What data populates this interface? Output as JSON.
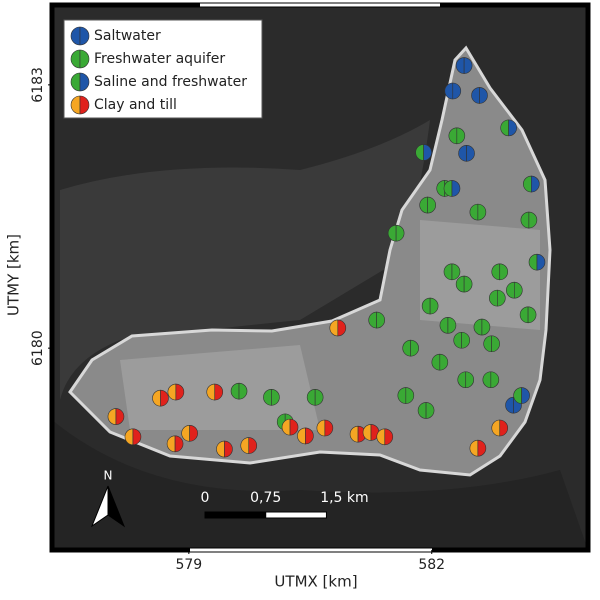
{
  "chart_data": {
    "type": "scatter",
    "xlabel": "UTMX [km]",
    "ylabel": "UTMY [km]",
    "xlim": [
      577.31,
      583.93
    ],
    "ylim": [
      6177.7,
      6183.91
    ],
    "xticks": [
      579,
      582
    ],
    "yticks": [
      6180,
      6183
    ],
    "legend": "upper left",
    "series": [
      {
        "name": "Saltwater",
        "colors": [
          "#1f56a8",
          "#1f56a8"
        ],
        "x": [
          582.4,
          582.26,
          582.59,
          582.43,
          583.01
        ],
        "y": [
          6183.22,
          6182.93,
          6182.88,
          6182.22,
          6179.35
        ]
      },
      {
        "name": "Freshwater aquifer",
        "colors": [
          "#3aa935",
          "#3aa935"
        ],
        "x": [
          582.31,
          582.16,
          581.95,
          582.57,
          581.56,
          583.2,
          582.25,
          582.84,
          582.4,
          583.02,
          582.81,
          581.98,
          583.19,
          581.32,
          582.2,
          582.62,
          582.37,
          581.74,
          582.74,
          582.1,
          582.42,
          582.73,
          579.62,
          580.02,
          580.56,
          581.68,
          580.19,
          581.93
        ],
        "y": [
          6182.42,
          6181.82,
          6181.63,
          6181.55,
          6181.31,
          6181.46,
          6180.87,
          6180.87,
          6180.73,
          6180.66,
          6180.57,
          6180.48,
          6180.38,
          6180.32,
          6180.26,
          6180.24,
          6180.09,
          6180.0,
          6180.05,
          6179.84,
          6179.64,
          6179.64,
          6179.51,
          6179.44,
          6179.44,
          6179.46,
          6179.16,
          6179.29
        ]
      },
      {
        "name": "Saline and freshwater",
        "colors": [
          "#3aa935",
          "#1f56a8"
        ],
        "x": [
          582.95,
          581.9,
          582.25,
          583.23,
          583.3,
          583.11
        ],
        "y": [
          6182.51,
          6182.23,
          6181.82,
          6181.87,
          6180.98,
          6179.46
        ]
      },
      {
        "name": "Clay and till",
        "colors": [
          "#f5a623",
          "#e0221c"
        ],
        "x": [
          580.84,
          578.65,
          578.84,
          579.32,
          578.1,
          578.31,
          578.83,
          579.01,
          579.44,
          579.74,
          580.25,
          580.44,
          580.68,
          581.09,
          581.25,
          581.42,
          582.57,
          582.84
        ],
        "y": [
          6180.23,
          6179.43,
          6179.5,
          6179.5,
          6179.22,
          6178.99,
          6178.91,
          6179.03,
          6178.85,
          6178.89,
          6179.1,
          6179.0,
          6179.09,
          6179.02,
          6179.04,
          6178.99,
          6178.86,
          6179.09
        ]
      }
    ],
    "scale_bar": {
      "ticks": [
        {
          "value": 0,
          "label": "0"
        },
        {
          "value": 0.75,
          "label": "0,75"
        },
        {
          "value": 1.5,
          "label": "1,5 km"
        }
      ]
    },
    "north_arrow": "N"
  }
}
